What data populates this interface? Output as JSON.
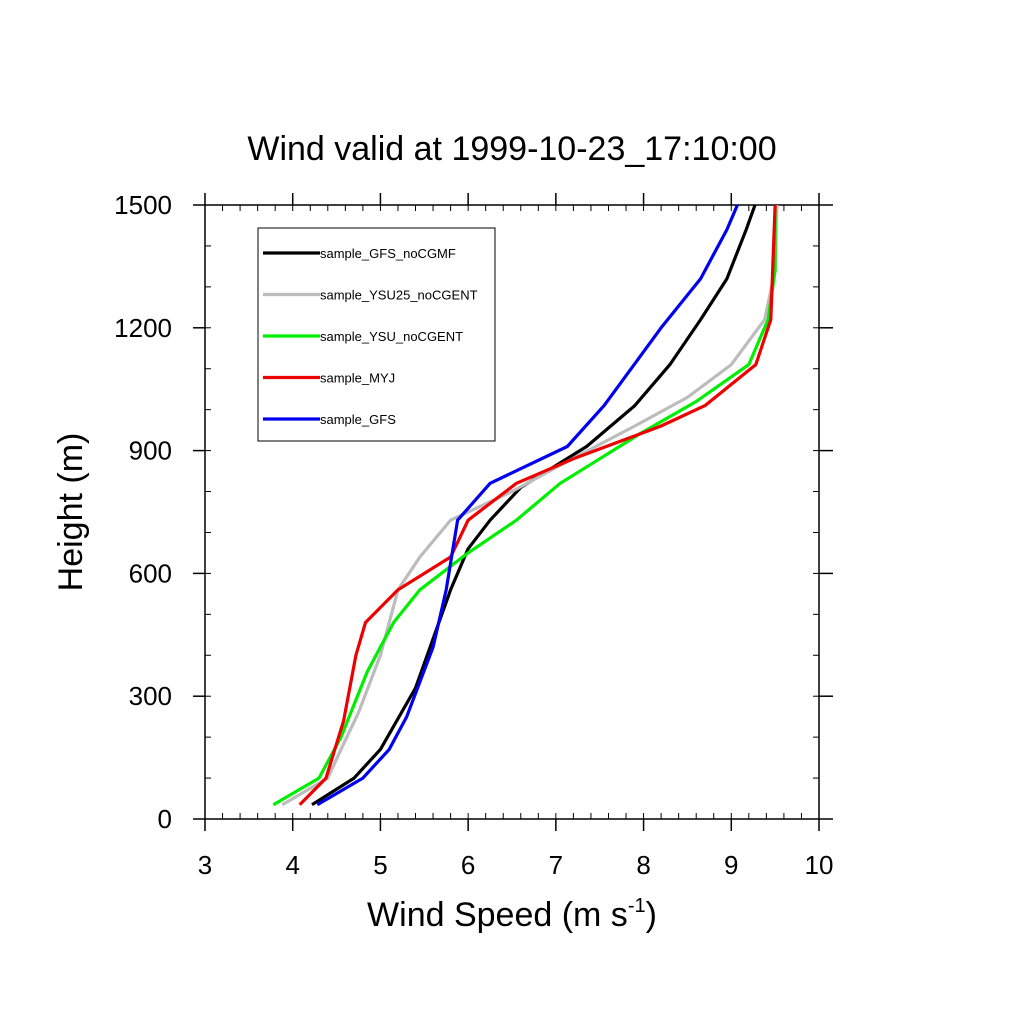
{
  "chart_data": {
    "type": "line",
    "title": "Wind valid at 1999-10-23_17:10:00",
    "xlabel": "Wind Speed (m s",
    "xlabel_sup": "-1",
    "xlabel_close": ")",
    "ylabel": "Height (m)",
    "xlim": [
      3,
      10
    ],
    "ylim": [
      0,
      1500
    ],
    "x_ticks": [
      3,
      4,
      5,
      6,
      7,
      8,
      9,
      10
    ],
    "y_ticks": [
      0,
      300,
      600,
      900,
      1200,
      1500
    ],
    "x_tick_labels": [
      "3",
      "4",
      "5",
      "6",
      "7",
      "8",
      "9",
      "10"
    ],
    "y_tick_labels": [
      "0",
      "300",
      "600",
      "900",
      "1200",
      "1500"
    ],
    "grid": false,
    "legend_position": "top-left",
    "series": [
      {
        "name": "sample_GFS_noCGMF",
        "color": "#000000",
        "points": [
          [
            4.22,
            35
          ],
          [
            4.7,
            100
          ],
          [
            5.0,
            170
          ],
          [
            5.4,
            320
          ],
          [
            5.8,
            560
          ],
          [
            6.0,
            660
          ],
          [
            6.25,
            730
          ],
          [
            6.6,
            810
          ],
          [
            7.35,
            910
          ],
          [
            7.9,
            1010
          ],
          [
            8.3,
            1110
          ],
          [
            8.65,
            1220
          ],
          [
            8.95,
            1320
          ],
          [
            9.17,
            1440
          ],
          [
            9.27,
            1500
          ]
        ]
      },
      {
        "name": "sample_YSU25_noCGENT",
        "color": "#bcbcbc",
        "points": [
          [
            3.88,
            35
          ],
          [
            4.4,
            100
          ],
          [
            4.55,
            170
          ],
          [
            4.75,
            260
          ],
          [
            5.0,
            400
          ],
          [
            5.2,
            560
          ],
          [
            5.45,
            640
          ],
          [
            5.8,
            730
          ],
          [
            6.5,
            800
          ],
          [
            7.1,
            870
          ],
          [
            7.9,
            960
          ],
          [
            8.5,
            1030
          ],
          [
            9.0,
            1110
          ],
          [
            9.38,
            1220
          ],
          [
            9.5,
            1340
          ],
          [
            9.52,
            1500
          ]
        ]
      },
      {
        "name": "sample_YSU_noCGENT",
        "color": "#00ee00",
        "points": [
          [
            3.78,
            35
          ],
          [
            4.3,
            100
          ],
          [
            4.55,
            200
          ],
          [
            4.85,
            360
          ],
          [
            5.15,
            480
          ],
          [
            5.45,
            560
          ],
          [
            6.0,
            650
          ],
          [
            6.55,
            730
          ],
          [
            7.05,
            820
          ],
          [
            7.5,
            880
          ],
          [
            7.95,
            940
          ],
          [
            8.6,
            1020
          ],
          [
            9.2,
            1110
          ],
          [
            9.42,
            1220
          ],
          [
            9.5,
            1340
          ],
          [
            9.5,
            1500
          ]
        ]
      },
      {
        "name": "sample_MYJ",
        "color": "#ee0000",
        "points": [
          [
            4.08,
            35
          ],
          [
            4.38,
            100
          ],
          [
            4.58,
            240
          ],
          [
            4.72,
            400
          ],
          [
            4.83,
            480
          ],
          [
            5.2,
            560
          ],
          [
            5.8,
            640
          ],
          [
            6.0,
            730
          ],
          [
            6.55,
            820
          ],
          [
            7.2,
            880
          ],
          [
            7.7,
            920
          ],
          [
            8.2,
            960
          ],
          [
            8.7,
            1010
          ],
          [
            9.28,
            1110
          ],
          [
            9.45,
            1220
          ],
          [
            9.5,
            1500
          ]
        ]
      },
      {
        "name": "sample_GFS",
        "color": "#0000ee",
        "points": [
          [
            4.28,
            35
          ],
          [
            4.8,
            100
          ],
          [
            5.1,
            170
          ],
          [
            5.3,
            250
          ],
          [
            5.6,
            420
          ],
          [
            5.75,
            560
          ],
          [
            5.88,
            730
          ],
          [
            6.25,
            820
          ],
          [
            7.13,
            910
          ],
          [
            7.55,
            1010
          ],
          [
            8.2,
            1200
          ],
          [
            8.65,
            1320
          ],
          [
            8.95,
            1440
          ],
          [
            9.07,
            1500
          ]
        ]
      }
    ]
  }
}
